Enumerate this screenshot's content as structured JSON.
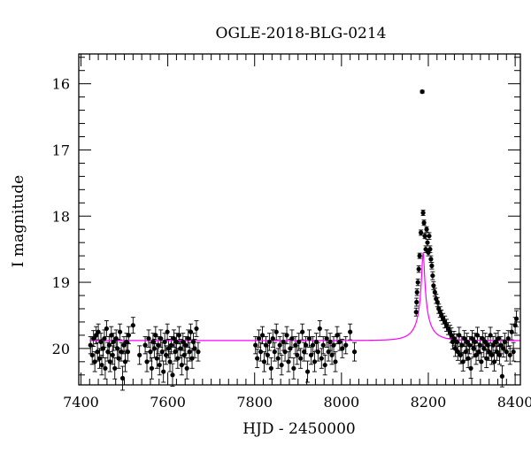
{
  "chart_data": {
    "type": "scatter",
    "title": "OGLE-2018-BLG-0214",
    "xlabel": "HJD - 2450000",
    "ylabel": "I magnitude",
    "xlim": [
      7395,
      8412
    ],
    "ylim": [
      20.55,
      15.55
    ],
    "y_inverted": true,
    "grid": false,
    "x_ticks": [
      7400,
      7600,
      7800,
      8000,
      8200,
      8400
    ],
    "y_ticks": [
      16,
      17,
      18,
      19,
      20
    ],
    "x_minor_step": 20,
    "y_minor_step": 0.2,
    "colors": {
      "data": "#000000",
      "model": "#ff00ff",
      "frame": "#000000"
    },
    "series": [
      {
        "kind": "points",
        "points": [
          [
            7422,
            19.95,
            0.13
          ],
          [
            7426,
            20.1,
            0.14
          ],
          [
            7429,
            19.85,
            0.12
          ],
          [
            7432,
            20.2,
            0.15
          ],
          [
            7435,
            19.8,
            0.13
          ],
          [
            7438,
            20.05,
            0.14
          ],
          [
            7440,
            19.75,
            0.12
          ],
          [
            7443,
            20.15,
            0.15
          ],
          [
            7446,
            19.9,
            0.13
          ],
          [
            7448,
            20.25,
            0.15
          ],
          [
            7451,
            20.0,
            0.14
          ],
          [
            7454,
            19.85,
            0.13
          ],
          [
            7456,
            20.3,
            0.16
          ],
          [
            7459,
            19.7,
            0.12
          ],
          [
            7462,
            20.05,
            0.14
          ],
          [
            7465,
            19.95,
            0.13
          ],
          [
            7467,
            20.2,
            0.15
          ],
          [
            7470,
            19.8,
            0.13
          ],
          [
            7473,
            20.1,
            0.14
          ],
          [
            7475,
            19.9,
            0.13
          ],
          [
            7478,
            20.3,
            0.16
          ],
          [
            7481,
            19.85,
            0.13
          ],
          [
            7484,
            20.0,
            0.14
          ],
          [
            7487,
            20.15,
            0.15
          ],
          [
            7490,
            19.75,
            0.12
          ],
          [
            7493,
            20.05,
            0.14
          ],
          [
            7496,
            20.45,
            0.18
          ],
          [
            7499,
            19.95,
            0.13
          ],
          [
            7502,
            20.2,
            0.15
          ],
          [
            7505,
            19.9,
            0.13
          ],
          [
            7508,
            20.05,
            0.14
          ],
          [
            7510,
            19.8,
            0.13
          ],
          [
            7520,
            19.65,
            0.12
          ],
          [
            7535,
            20.1,
            0.14
          ],
          [
            7548,
            19.95,
            0.13
          ],
          [
            7552,
            20.2,
            0.15
          ],
          [
            7556,
            19.85,
            0.13
          ],
          [
            7560,
            20.05,
            0.14
          ],
          [
            7563,
            20.3,
            0.16
          ],
          [
            7566,
            19.9,
            0.13
          ],
          [
            7569,
            20.0,
            0.14
          ],
          [
            7572,
            19.8,
            0.13
          ],
          [
            7575,
            20.15,
            0.15
          ],
          [
            7578,
            19.95,
            0.13
          ],
          [
            7581,
            20.25,
            0.15
          ],
          [
            7584,
            19.85,
            0.13
          ],
          [
            7587,
            20.05,
            0.14
          ],
          [
            7590,
            20.35,
            0.16
          ],
          [
            7593,
            19.9,
            0.13
          ],
          [
            7596,
            20.1,
            0.14
          ],
          [
            7599,
            19.75,
            0.12
          ],
          [
            7602,
            20.0,
            0.14
          ],
          [
            7605,
            20.2,
            0.15
          ],
          [
            7608,
            19.95,
            0.13
          ],
          [
            7611,
            20.4,
            0.17
          ],
          [
            7614,
            19.85,
            0.13
          ],
          [
            7617,
            20.05,
            0.14
          ],
          [
            7620,
            19.9,
            0.13
          ],
          [
            7623,
            20.15,
            0.15
          ],
          [
            7626,
            19.8,
            0.13
          ],
          [
            7629,
            20.0,
            0.14
          ],
          [
            7632,
            20.25,
            0.15
          ],
          [
            7635,
            19.9,
            0.13
          ],
          [
            7638,
            20.1,
            0.14
          ],
          [
            7641,
            19.95,
            0.13
          ],
          [
            7644,
            20.3,
            0.16
          ],
          [
            7647,
            19.85,
            0.13
          ],
          [
            7650,
            20.05,
            0.14
          ],
          [
            7653,
            19.75,
            0.12
          ],
          [
            7656,
            20.15,
            0.15
          ],
          [
            7659,
            19.9,
            0.13
          ],
          [
            7662,
            20.0,
            0.14
          ],
          [
            7666,
            19.7,
            0.12
          ],
          [
            7670,
            20.05,
            0.14
          ],
          [
            7802,
            19.95,
            0.13
          ],
          [
            7806,
            20.15,
            0.14
          ],
          [
            7810,
            19.85,
            0.13
          ],
          [
            7814,
            20.05,
            0.14
          ],
          [
            7818,
            19.8,
            0.13
          ],
          [
            7822,
            20.2,
            0.15
          ],
          [
            7826,
            19.95,
            0.13
          ],
          [
            7830,
            20.1,
            0.14
          ],
          [
            7834,
            19.9,
            0.13
          ],
          [
            7838,
            20.3,
            0.16
          ],
          [
            7842,
            19.85,
            0.13
          ],
          [
            7846,
            20.05,
            0.14
          ],
          [
            7850,
            19.75,
            0.12
          ],
          [
            7854,
            20.15,
            0.15
          ],
          [
            7858,
            19.95,
            0.13
          ],
          [
            7862,
            20.25,
            0.15
          ],
          [
            7866,
            19.9,
            0.13
          ],
          [
            7870,
            20.05,
            0.14
          ],
          [
            7874,
            19.8,
            0.13
          ],
          [
            7878,
            20.2,
            0.15
          ],
          [
            7882,
            20.0,
            0.14
          ],
          [
            7886,
            19.85,
            0.13
          ],
          [
            7890,
            20.3,
            0.16
          ],
          [
            7894,
            19.95,
            0.13
          ],
          [
            7898,
            20.1,
            0.14
          ],
          [
            7902,
            19.9,
            0.13
          ],
          [
            7906,
            20.15,
            0.15
          ],
          [
            7910,
            19.75,
            0.12
          ],
          [
            7914,
            20.05,
            0.14
          ],
          [
            7918,
            19.95,
            0.13
          ],
          [
            7922,
            20.35,
            0.16
          ],
          [
            7926,
            19.85,
            0.13
          ],
          [
            7930,
            20.1,
            0.14
          ],
          [
            7934,
            19.95,
            0.13
          ],
          [
            7938,
            20.2,
            0.15
          ],
          [
            7942,
            19.9,
            0.13
          ],
          [
            7946,
            20.05,
            0.14
          ],
          [
            7950,
            19.7,
            0.12
          ],
          [
            7954,
            20.15,
            0.15
          ],
          [
            7958,
            19.95,
            0.13
          ],
          [
            7962,
            20.25,
            0.15
          ],
          [
            7966,
            19.85,
            0.13
          ],
          [
            7970,
            20.05,
            0.14
          ],
          [
            7974,
            19.9,
            0.13
          ],
          [
            7978,
            20.1,
            0.14
          ],
          [
            7982,
            19.95,
            0.13
          ],
          [
            7986,
            20.2,
            0.15
          ],
          [
            7990,
            19.8,
            0.13
          ],
          [
            7996,
            19.9,
            0.13
          ],
          [
            8002,
            20.0,
            0.14
          ],
          [
            8010,
            19.95,
            0.13
          ],
          [
            8020,
            19.75,
            0.12
          ],
          [
            8030,
            20.05,
            0.14
          ],
          [
            8172,
            19.45,
            0.06
          ],
          [
            8173,
            19.3,
            0.06
          ],
          [
            8174,
            19.15,
            0.05
          ],
          [
            8176,
            19.0,
            0.05
          ],
          [
            8178,
            18.8,
            0.05
          ],
          [
            8180,
            18.6,
            0.04
          ],
          [
            8183,
            18.25,
            0.04
          ],
          [
            8186,
            16.12,
            0.02
          ],
          [
            8188,
            17.95,
            0.04
          ],
          [
            8190,
            18.1,
            0.04
          ],
          [
            8192,
            18.3,
            0.04
          ],
          [
            8194,
            18.5,
            0.05
          ],
          [
            8196,
            18.2,
            0.04
          ],
          [
            8198,
            18.4,
            0.05
          ],
          [
            8200,
            18.55,
            0.05
          ],
          [
            8202,
            18.3,
            0.05
          ],
          [
            8204,
            18.5,
            0.05
          ],
          [
            8206,
            18.65,
            0.05
          ],
          [
            8208,
            18.75,
            0.05
          ],
          [
            8210,
            18.9,
            0.06
          ],
          [
            8212,
            19.05,
            0.06
          ],
          [
            8215,
            19.15,
            0.06
          ],
          [
            8218,
            19.25,
            0.07
          ],
          [
            8221,
            19.3,
            0.07
          ],
          [
            8224,
            19.4,
            0.07
          ],
          [
            8227,
            19.45,
            0.08
          ],
          [
            8230,
            19.5,
            0.08
          ],
          [
            8234,
            19.55,
            0.08
          ],
          [
            8238,
            19.6,
            0.09
          ],
          [
            8242,
            19.65,
            0.09
          ],
          [
            8246,
            19.7,
            0.09
          ],
          [
            8250,
            19.75,
            0.1
          ],
          [
            8253,
            19.8,
            0.11
          ],
          [
            8256,
            19.9,
            0.11
          ],
          [
            8259,
            19.85,
            0.11
          ],
          [
            8262,
            20.0,
            0.12
          ],
          [
            8265,
            19.9,
            0.12
          ],
          [
            8268,
            20.05,
            0.13
          ],
          [
            8271,
            19.8,
            0.12
          ],
          [
            8274,
            20.1,
            0.13
          ],
          [
            8277,
            19.95,
            0.13
          ],
          [
            8280,
            20.2,
            0.14
          ],
          [
            8283,
            19.85,
            0.12
          ],
          [
            8286,
            20.05,
            0.13
          ],
          [
            8289,
            19.9,
            0.13
          ],
          [
            8292,
            20.15,
            0.14
          ],
          [
            8295,
            19.95,
            0.13
          ],
          [
            8298,
            20.3,
            0.15
          ],
          [
            8301,
            19.85,
            0.12
          ],
          [
            8304,
            20.0,
            0.13
          ],
          [
            8307,
            19.9,
            0.13
          ],
          [
            8310,
            20.1,
            0.14
          ],
          [
            8313,
            19.8,
            0.12
          ],
          [
            8316,
            20.05,
            0.13
          ],
          [
            8319,
            19.95,
            0.13
          ],
          [
            8322,
            20.2,
            0.14
          ],
          [
            8325,
            19.85,
            0.12
          ],
          [
            8328,
            20.0,
            0.13
          ],
          [
            8331,
            19.9,
            0.13
          ],
          [
            8334,
            20.15,
            0.14
          ],
          [
            8337,
            19.95,
            0.13
          ],
          [
            8340,
            20.05,
            0.13
          ],
          [
            8343,
            19.8,
            0.12
          ],
          [
            8346,
            20.1,
            0.14
          ],
          [
            8349,
            19.95,
            0.13
          ],
          [
            8352,
            20.2,
            0.14
          ],
          [
            8355,
            19.9,
            0.13
          ],
          [
            8358,
            20.05,
            0.13
          ],
          [
            8361,
            19.85,
            0.12
          ],
          [
            8364,
            20.1,
            0.14
          ],
          [
            8367,
            19.95,
            0.13
          ],
          [
            8370,
            20.42,
            0.16
          ],
          [
            8373,
            20.0,
            0.13
          ],
          [
            8376,
            19.9,
            0.13
          ],
          [
            8380,
            20.05,
            0.14
          ],
          [
            8384,
            19.85,
            0.12
          ],
          [
            8388,
            20.1,
            0.14
          ],
          [
            8392,
            19.75,
            0.12
          ],
          [
            8396,
            20.05,
            0.14
          ],
          [
            8400,
            19.65,
            0.12
          ],
          [
            8403,
            19.55,
            0.12
          ]
        ]
      },
      {
        "kind": "model-curve",
        "model": {
          "t0": 8188,
          "tE": 40,
          "u0": 0.07,
          "fs": 0.18,
          "base_mag": 19.88,
          "x_range": [
            7420,
            8412
          ]
        }
      }
    ]
  }
}
